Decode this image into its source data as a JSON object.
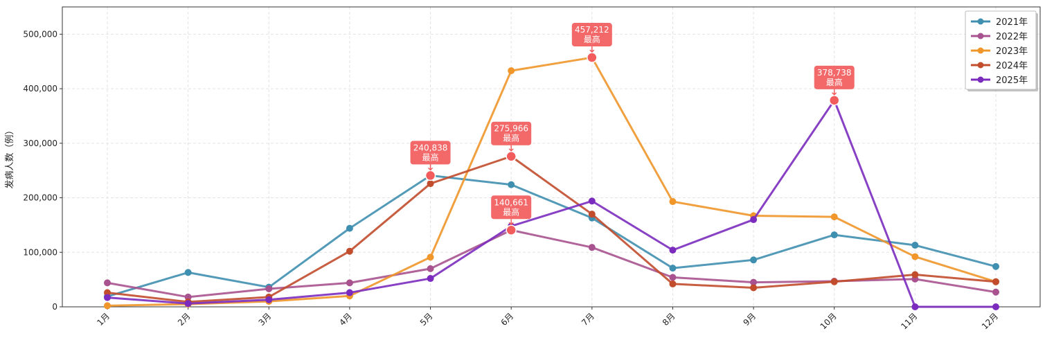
{
  "chart_data": {
    "type": "line",
    "title": "",
    "xlabel": "",
    "ylabel": "发病人数（例）",
    "categories": [
      "1月",
      "2月",
      "3月",
      "4月",
      "5月",
      "6月",
      "7月",
      "8月",
      "9月",
      "10月",
      "11月",
      "12月"
    ],
    "ylim": [
      0,
      550000
    ],
    "yticks": [
      0,
      100000,
      200000,
      300000,
      400000,
      500000
    ],
    "ytick_labels": [
      "0",
      "100,000",
      "200,000",
      "300,000",
      "400,000",
      "500,000"
    ],
    "grid": true,
    "legend_position": "top-right",
    "series": [
      {
        "name": "2021年",
        "color": "#3f8fb0",
        "values": [
          19000,
          63000,
          36000,
          144000,
          240838,
          224000,
          163000,
          71000,
          86000,
          132000,
          113000,
          74000
        ]
      },
      {
        "name": "2022年",
        "color": "#a8538f",
        "values": [
          44000,
          18000,
          33000,
          44000,
          70000,
          140661,
          109000,
          54000,
          45000,
          47000,
          51000,
          27000
        ]
      },
      {
        "name": "2023年",
        "color": "#f0962a",
        "values": [
          2000,
          5000,
          10000,
          20000,
          91000,
          433000,
          457212,
          193000,
          167000,
          165000,
          92000,
          46000
        ]
      },
      {
        "name": "2024年",
        "color": "#c24d2c",
        "values": [
          26000,
          9000,
          18000,
          102000,
          226000,
          275966,
          170000,
          42000,
          35000,
          46000,
          59000,
          46000
        ]
      },
      {
        "name": "2025年",
        "color": "#7b2cbf",
        "values": [
          17000,
          6000,
          13000,
          26000,
          52000,
          148000,
          194000,
          104000,
          160000,
          378738,
          0,
          0
        ]
      }
    ],
    "annotations": [
      {
        "series": 0,
        "index": 4,
        "value_text": "240,838",
        "label": "最高"
      },
      {
        "series": 1,
        "index": 5,
        "value_text": "140,661",
        "label": "最高"
      },
      {
        "series": 2,
        "index": 6,
        "value_text": "457,212",
        "label": "最高"
      },
      {
        "series": 3,
        "index": 5,
        "value_text": "275,966",
        "label": "最高"
      },
      {
        "series": 4,
        "index": 9,
        "value_text": "378,738",
        "label": "最高"
      }
    ],
    "highlight_color": "#f25c5c"
  }
}
